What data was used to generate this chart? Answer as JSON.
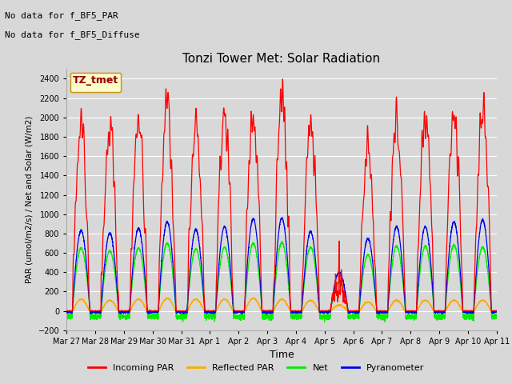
{
  "title": "Tonzi Tower Met: Solar Radiation",
  "ylabel": "PAR (umol/m2/s) / Net and Solar (W/m2)",
  "xlabel": "Time",
  "ylim": [
    -200,
    2500
  ],
  "yticks": [
    -200,
    0,
    200,
    400,
    600,
    800,
    1000,
    1200,
    1400,
    1600,
    1800,
    2000,
    2200,
    2400
  ],
  "bg_color": "#d8d8d8",
  "fig_color": "#d8d8d8",
  "annotation1": "No data for f_BF5_PAR",
  "annotation2": "No data for f_BF5_Diffuse",
  "legend_box_label": "TZ_tmet",
  "legend_box_facecolor": "#ffffcc",
  "legend_box_edgecolor": "#cc8800",
  "line_colors": {
    "incoming": "#ff0000",
    "reflected": "#ffaa00",
    "net": "#00ee00",
    "pyranometer": "#0000ee"
  },
  "legend_labels": [
    "Incoming PAR",
    "Reflected PAR",
    "Net",
    "Pyranometer"
  ],
  "n_days": 15,
  "points_per_day": 288,
  "x_tick_labels": [
    "Mar 27",
    "Mar 28",
    "Mar 29",
    "Mar 30",
    "Mar 31",
    "Apr 1",
    "Apr 2",
    "Apr 3",
    "Apr 4",
    "Apr 5",
    "Apr 6",
    "Apr 7",
    "Apr 8",
    "Apr 9",
    "Apr 10",
    "Apr 11"
  ],
  "incoming_peaks": [
    1900,
    1860,
    1940,
    2130,
    1930,
    2000,
    1980,
    2200,
    1930,
    860,
    1680,
    2000,
    2020,
    2080,
    2080
  ],
  "pyranometer_peaks": [
    830,
    800,
    850,
    920,
    840,
    870,
    950,
    960,
    820,
    400,
    750,
    870,
    870,
    920,
    940
  ],
  "net_peaks": [
    650,
    620,
    650,
    700,
    640,
    660,
    700,
    710,
    660,
    300,
    580,
    670,
    670,
    680,
    660
  ],
  "reflected_peaks": [
    120,
    110,
    120,
    130,
    120,
    120,
    130,
    120,
    110,
    60,
    90,
    110,
    110,
    110,
    110
  ]
}
